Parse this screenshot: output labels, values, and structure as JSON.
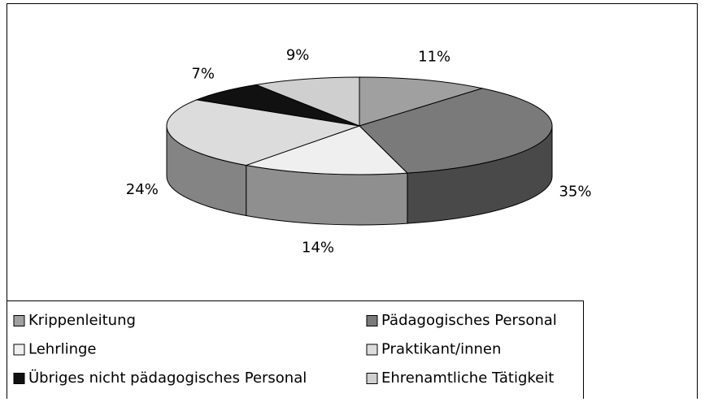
{
  "chart_data": {
    "type": "pie3d",
    "categories": [
      "Krippenleitung",
      "Pädagogisches Personal",
      "Lehrlinge",
      "Praktikant/innen",
      "Übriges nicht pädagogisches Personal",
      "Ehrenamtliche Tätigkeit"
    ],
    "values": [
      11,
      35,
      14,
      24,
      7,
      9
    ],
    "value_labels": [
      "11%",
      "35%",
      "14%",
      "24%",
      "7%",
      "9%"
    ],
    "colors": [
      "#a0a0a0",
      "#7a7a7a",
      "#efefef",
      "#dcdcdc",
      "#111111",
      "#cfcfcf"
    ],
    "legend": "bottom"
  }
}
